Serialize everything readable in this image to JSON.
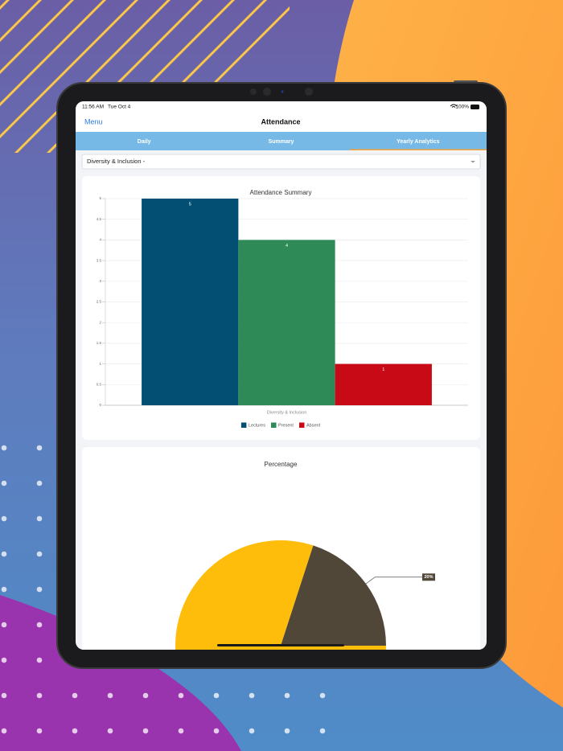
{
  "status_bar": {
    "time": "11:56 AM",
    "date": "Tue Oct 4",
    "battery": "100%"
  },
  "nav": {
    "back": "Menu",
    "title": "Attendance"
  },
  "tabs": [
    "Daily",
    "Summary",
    "Yearly Analytics"
  ],
  "active_tab": 2,
  "dropdown": "Diversity & Inclusion -",
  "chart_data": [
    {
      "type": "bar",
      "title": "Attendance Summary",
      "categories": [
        "Diversity & Inclusion"
      ],
      "series": [
        {
          "name": "Lectures",
          "color": "#034f73",
          "values": [
            5
          ]
        },
        {
          "name": "Present",
          "color": "#2e8b57",
          "values": [
            4
          ]
        },
        {
          "name": "Absent",
          "color": "#c70a16",
          "values": [
            1
          ]
        }
      ],
      "ylim": [
        0,
        5
      ],
      "yticks": [
        0,
        0.5,
        1,
        1.5,
        2,
        2.5,
        3,
        3.5,
        4,
        4.5,
        5
      ],
      "grid": true,
      "legend": "bottom"
    },
    {
      "type": "pie",
      "title": "Percentage",
      "values": [
        80,
        20
      ],
      "value_labels": [
        null,
        "20%"
      ],
      "colors": [
        "#fdbd0a",
        "#514739"
      ]
    }
  ]
}
